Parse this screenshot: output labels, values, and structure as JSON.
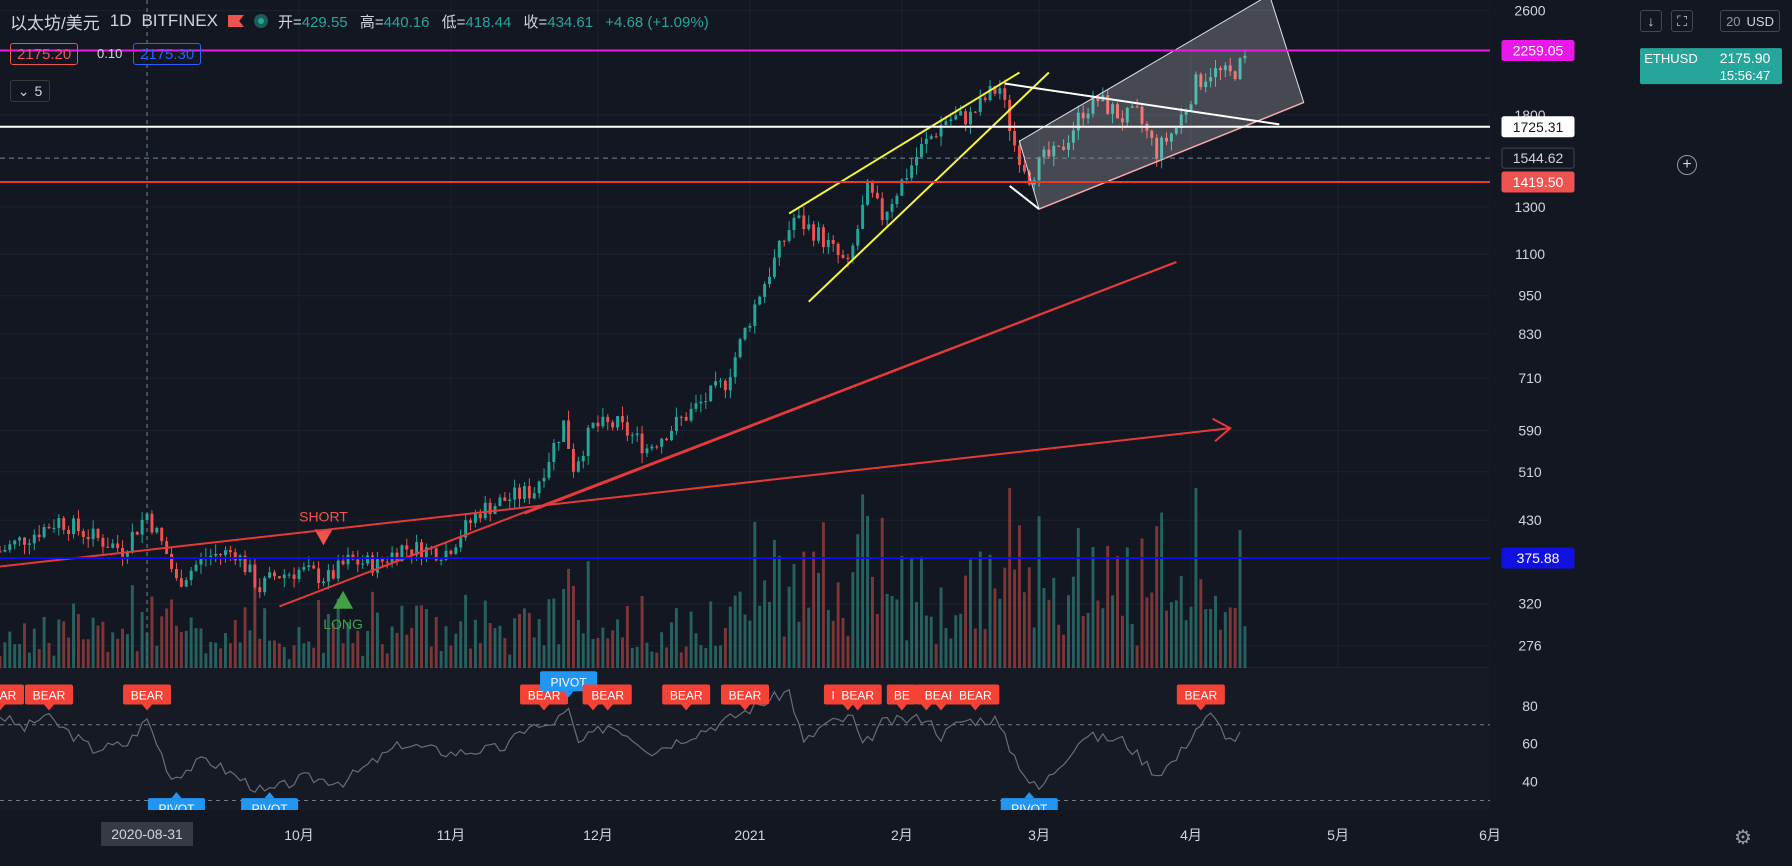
{
  "header": {
    "symbol": "以太坊/美元",
    "interval": "1D",
    "exchange": "BITFINEX",
    "ohlc": [
      {
        "label": "开=",
        "value": "429.55"
      },
      {
        "label": "高=",
        "value": "440.16"
      },
      {
        "label": "低=",
        "value": "418.44"
      },
      {
        "label": "收=",
        "value": "434.61"
      }
    ],
    "change": "+4.68 (+1.09%)"
  },
  "trade": {
    "bid": "2175.20",
    "spread": "0.10",
    "ask": "2175.30"
  },
  "indicator_toggle": {
    "count": "5",
    "icon": "chevron-down-icon"
  },
  "toolbar": {
    "currency": "USD",
    "axis_top_label": "20"
  },
  "colors": {
    "background": "#131722",
    "up": "#26a69a",
    "down": "#ef5350",
    "vol_up": "#2b6f6a",
    "vol_down": "#8e3c3c",
    "magenta": "#e91ae9",
    "white": "#ffffff",
    "blue": "#1010e0",
    "red": "#e43a3a",
    "yellow": "#f4f43a",
    "pivot": "#2196f3",
    "bear": "#f44336"
  },
  "chart_data": {
    "type": "candlestick",
    "symbol": "ETHUSD",
    "x_range": [
      "2020-08-01",
      "2021-06-01"
    ],
    "y_scale": "log",
    "y_range": [
      255,
      2700
    ],
    "y_ticks": [
      "2600",
      "1800",
      "1300",
      "1100",
      "950",
      "830",
      "710",
      "590",
      "510",
      "430",
      "320",
      "276"
    ],
    "x_ticks": [
      "10月",
      "11月",
      "12月",
      "2021",
      "2月",
      "3月",
      "4月",
      "5月",
      "6月"
    ],
    "x_tick_dates": [
      "2020-10-01",
      "2020-11-01",
      "2020-12-01",
      "2021-01-01",
      "2021-02-01",
      "2021-03-01",
      "2021-04-01",
      "2021-05-01",
      "2021-06-01"
    ],
    "crosshair_date_label": "2020-08-31",
    "anchors": [
      [
        "2020-08-01",
        385
      ],
      [
        "2020-08-13",
        430
      ],
      [
        "2020-08-20",
        405
      ],
      [
        "2020-08-26",
        388
      ],
      [
        "2020-08-31",
        440
      ],
      [
        "2020-09-04",
        382
      ],
      [
        "2020-09-06",
        345
      ],
      [
        "2020-09-12",
        378
      ],
      [
        "2020-09-18",
        385
      ],
      [
        "2020-09-23",
        338
      ],
      [
        "2020-09-26",
        353
      ],
      [
        "2020-10-01",
        360
      ],
      [
        "2020-10-07",
        350
      ],
      [
        "2020-10-11",
        372
      ],
      [
        "2020-10-17",
        368
      ],
      [
        "2020-10-22",
        390
      ],
      [
        "2020-10-31",
        385
      ],
      [
        "2020-11-07",
        445
      ],
      [
        "2020-11-12",
        462
      ],
      [
        "2020-11-18",
        478
      ],
      [
        "2020-11-24",
        605
      ],
      [
        "2020-11-26",
        520
      ],
      [
        "2020-11-30",
        598
      ],
      [
        "2020-12-05",
        602
      ],
      [
        "2020-12-11",
        555
      ],
      [
        "2020-12-15",
        588
      ],
      [
        "2020-12-21",
        640
      ],
      [
        "2020-12-27",
        700
      ],
      [
        "2021-01-03",
        960
      ],
      [
        "2021-01-10",
        1250
      ],
      [
        "2021-01-15",
        1180
      ],
      [
        "2021-01-21",
        1050
      ],
      [
        "2021-01-25",
        1380
      ],
      [
        "2021-01-28",
        1260
      ],
      [
        "2021-02-05",
        1600
      ],
      [
        "2021-02-10",
        1770
      ],
      [
        "2021-02-15",
        1790
      ],
      [
        "2021-02-19",
        1940
      ],
      [
        "2021-02-21",
        1980
      ],
      [
        "2021-02-24",
        1620
      ],
      [
        "2021-02-27",
        1450
      ],
      [
        "2021-03-02",
        1540
      ],
      [
        "2021-03-05",
        1570
      ],
      [
        "2021-03-10",
        1830
      ],
      [
        "2021-03-13",
        1900
      ],
      [
        "2021-03-18",
        1780
      ],
      [
        "2021-03-21",
        1800
      ],
      [
        "2021-03-25",
        1580
      ],
      [
        "2021-03-29",
        1720
      ],
      [
        "2021-04-02",
        2010
      ],
      [
        "2021-04-05",
        2100
      ],
      [
        "2021-04-09",
        2070
      ],
      [
        "2021-04-12",
        2175.9
      ]
    ],
    "price_labels": [
      {
        "price": 2259.05,
        "text": "2259.05",
        "color": "#e91ae9",
        "text_color": "#ffffff"
      },
      {
        "price": 1725.31,
        "text": "1725.31",
        "color": "#ffffff",
        "text_color": "#131722"
      },
      {
        "price": 1544.62,
        "text": "1544.62",
        "color": "#131722",
        "text_color": "#d1d4dc"
      },
      {
        "price": 1419.5,
        "text": "1419.50",
        "color": "#ef5350",
        "text_color": "#ffffff"
      },
      {
        "price": 375.88,
        "text": "375.88",
        "color": "#1010e0",
        "text_color": "#ffffff"
      }
    ],
    "last_price": {
      "symbol_tag": "ETHUSD",
      "price": "2175.90",
      "countdown": "15:56:47"
    },
    "horizontal_lines": [
      {
        "price": 2259.05,
        "color": "#e91ae9"
      },
      {
        "price": 1725.31,
        "color": "#ffffff"
      },
      {
        "price": 1419.5,
        "color": "#e43a3a"
      },
      {
        "price": 375.88,
        "color": "#1010e0"
      }
    ],
    "signals": [
      {
        "text": "SHORT",
        "date": "2020-10-06",
        "price": 385,
        "kind": "short"
      },
      {
        "text": "LONG",
        "date": "2020-10-10",
        "price": 335,
        "kind": "long"
      }
    ],
    "oscillator": {
      "y_range": [
        25,
        100
      ],
      "y_ticks": [
        "80",
        "60",
        "40"
      ],
      "levels": [
        70,
        30
      ],
      "anchors": [
        [
          "2020-08-01",
          75
        ],
        [
          "2020-08-06",
          68
        ],
        [
          "2020-08-10",
          75
        ],
        [
          "2020-08-20",
          57
        ],
        [
          "2020-08-27",
          60
        ],
        [
          "2020-08-31",
          73
        ],
        [
          "2020-09-05",
          42
        ],
        [
          "2020-09-12",
          52
        ],
        [
          "2020-09-24",
          34
        ],
        [
          "2020-10-02",
          42
        ],
        [
          "2020-10-10",
          40
        ],
        [
          "2020-10-22",
          60
        ],
        [
          "2020-11-01",
          55
        ],
        [
          "2020-11-12",
          58
        ],
        [
          "2020-11-17",
          70
        ],
        [
          "2020-11-20",
          68
        ],
        [
          "2020-11-25",
          77
        ],
        [
          "2020-11-27",
          60
        ],
        [
          "2020-12-03",
          70
        ],
        [
          "2020-12-06",
          67
        ],
        [
          "2020-12-12",
          56
        ],
        [
          "2020-12-26",
          71
        ],
        [
          "2021-01-04",
          82
        ],
        [
          "2021-01-09",
          88
        ],
        [
          "2021-01-12",
          60
        ],
        [
          "2021-01-16",
          70
        ],
        [
          "2021-01-22",
          74
        ],
        [
          "2021-01-24",
          58
        ],
        [
          "2021-01-28",
          71
        ],
        [
          "2021-02-06",
          74
        ],
        [
          "2021-02-09",
          64
        ],
        [
          "2021-02-13",
          72
        ],
        [
          "2021-02-20",
          73
        ],
        [
          "2021-02-23",
          58
        ],
        [
          "2021-02-27",
          40
        ],
        [
          "2021-03-01",
          36
        ],
        [
          "2021-03-10",
          64
        ],
        [
          "2021-03-18",
          62
        ],
        [
          "2021-03-25",
          44
        ],
        [
          "2021-03-29",
          52
        ],
        [
          "2021-04-02",
          68
        ],
        [
          "2021-04-05",
          75
        ],
        [
          "2021-04-09",
          62
        ],
        [
          "2021-04-12",
          65
        ]
      ],
      "markers": [
        {
          "text": "BEAR",
          "date": "2020-08-01",
          "kind": "bear"
        },
        {
          "text": "BEAR",
          "date": "2020-08-11",
          "kind": "bear"
        },
        {
          "text": "BEAR",
          "date": "2020-08-31",
          "kind": "bear"
        },
        {
          "text": "PIVOT",
          "date": "2020-09-06",
          "kind": "pivot"
        },
        {
          "text": "PIVOT",
          "date": "2020-09-25",
          "kind": "pivot"
        },
        {
          "text": "BEAR",
          "date": "2020-11-20",
          "kind": "bear"
        },
        {
          "text": "PIVOT",
          "date": "2020-11-25",
          "kind": "pivot"
        },
        {
          "text": "B",
          "date": "2020-11-30",
          "kind": "bear"
        },
        {
          "text": "BEAR",
          "date": "2020-12-03",
          "kind": "bear"
        },
        {
          "text": "BEAR",
          "date": "2020-12-19",
          "kind": "bear"
        },
        {
          "text": "BEAR",
          "date": "2020-12-31",
          "kind": "bear"
        },
        {
          "text": "BEAR",
          "date": "2021-01-21",
          "kind": "bear"
        },
        {
          "text": "BEAR",
          "date": "2021-01-23",
          "kind": "bear"
        },
        {
          "text": "BE",
          "date": "2021-02-01",
          "kind": "bear"
        },
        {
          "text": "B",
          "date": "2021-02-06",
          "kind": "bear"
        },
        {
          "text": "BEAR",
          "date": "2021-02-09",
          "kind": "bear"
        },
        {
          "text": "BEAR",
          "date": "2021-02-16",
          "kind": "bear"
        },
        {
          "text": "PIVOT",
          "date": "2021-02-27",
          "kind": "pivot"
        },
        {
          "text": "BEAR",
          "date": "2021-04-03",
          "kind": "bear"
        }
      ]
    },
    "drawings": [
      {
        "kind": "line",
        "color": "#e43a3a",
        "from": [
          "2020-09-27",
          317
        ],
        "to": [
          "2021-03-29",
          1070
        ]
      },
      {
        "kind": "line",
        "color": "#e43a3a",
        "from": [
          "2020-11-16",
          440
        ],
        "to": [
          "2021-03-29",
          1070
        ]
      },
      {
        "kind": "arrow",
        "color": "#e43a3a",
        "from": [
          "2020-08-01",
          365
        ],
        "to": [
          "2021-04-09",
          595
        ]
      },
      {
        "kind": "line",
        "color": "#f4f43a",
        "from": [
          "2021-01-09",
          1270
        ],
        "to": [
          "2021-02-25",
          2090
        ]
      },
      {
        "kind": "line",
        "color": "#f4f43a",
        "from": [
          "2021-01-13",
          930
        ],
        "to": [
          "2021-03-03",
          2090
        ]
      },
      {
        "kind": "line",
        "color": "#ffffff",
        "from": [
          "2021-02-22",
          2010
        ],
        "to": [
          "2021-04-19",
          1740
        ]
      },
      {
        "kind": "line",
        "color": "#ffffff",
        "from": [
          "2021-02-23",
          1400
        ],
        "to": [
          "2021-03-01",
          1290
        ]
      }
    ],
    "channel": {
      "top": [
        [
          "2021-02-25",
          1640
        ],
        [
          "2021-04-17",
          2750
        ]
      ],
      "bottom": [
        [
          "2021-03-01",
          1290
        ],
        [
          "2021-04-24",
          1880
        ]
      ],
      "fill": "#ffffff"
    }
  }
}
